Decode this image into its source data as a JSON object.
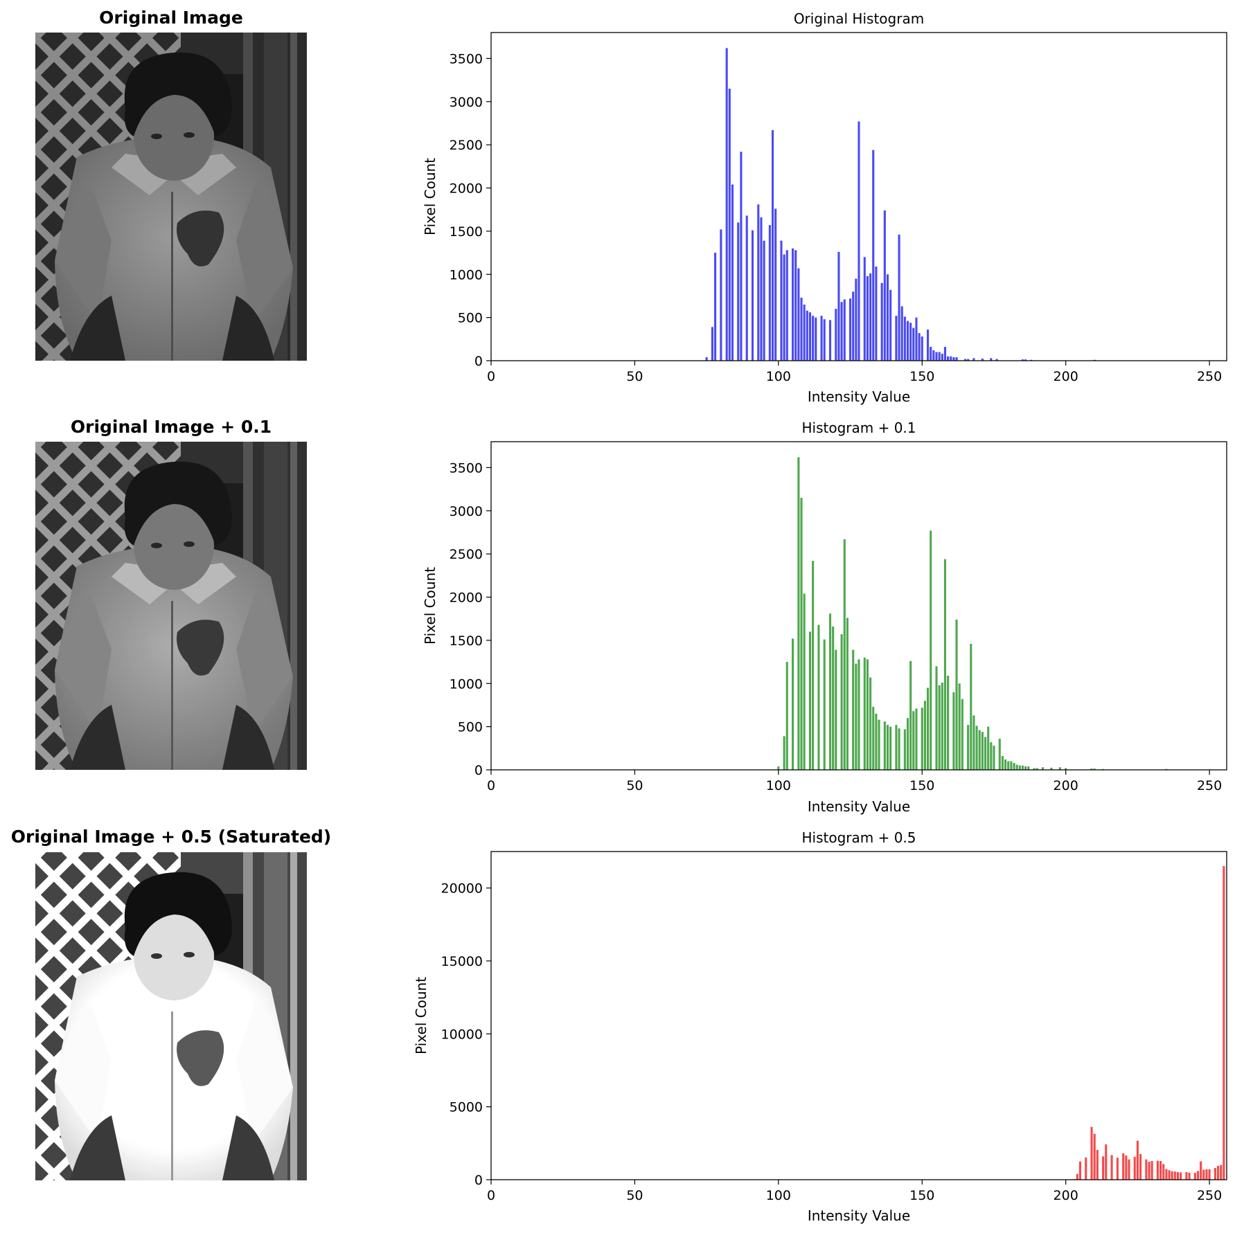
{
  "panels": [
    {
      "image_title": "Original Image",
      "photo": {
        "brightness": 0.0,
        "saturate": false
      }
    },
    {
      "image_title": "Original Image + 0.1",
      "photo": {
        "brightness": 0.1,
        "saturate": false
      }
    },
    {
      "image_title": "Original Image + 0.5 (Saturated)",
      "photo": {
        "brightness": 0.5,
        "saturate": true
      }
    }
  ],
  "colors": {
    "original": "#4a4af5",
    "plus_0_1": "#4ea84e",
    "plus_0_5": "#f54a4a",
    "axis": "#000000",
    "background": "#ffffff"
  },
  "chart_data": [
    {
      "type": "bar",
      "title": "Original Histogram",
      "xlabel": "Intensity Value",
      "ylabel": "Pixel Count",
      "xlim": [
        0,
        256
      ],
      "ylim": [
        0,
        3800
      ],
      "xticks": [
        0,
        50,
        100,
        150,
        200,
        250
      ],
      "yticks": [
        0,
        500,
        1000,
        1500,
        2000,
        2500,
        3000,
        3500
      ],
      "grid": false,
      "bars": [
        [
          75,
          40
        ],
        [
          77,
          390
        ],
        [
          78,
          1250
        ],
        [
          80,
          1520
        ],
        [
          82,
          3620
        ],
        [
          83,
          3150
        ],
        [
          84,
          2040
        ],
        [
          86,
          1600
        ],
        [
          87,
          2420
        ],
        [
          89,
          1680
        ],
        [
          91,
          1510
        ],
        [
          93,
          1810
        ],
        [
          94,
          1660
        ],
        [
          95,
          1390
        ],
        [
          97,
          1570
        ],
        [
          98,
          2670
        ],
        [
          99,
          1760
        ],
        [
          101,
          1390
        ],
        [
          102,
          1230
        ],
        [
          103,
          1280
        ],
        [
          105,
          1300
        ],
        [
          106,
          1280
        ],
        [
          107,
          1070
        ],
        [
          108,
          730
        ],
        [
          109,
          650
        ],
        [
          110,
          580
        ],
        [
          111,
          560
        ],
        [
          112,
          520
        ],
        [
          113,
          500
        ],
        [
          115,
          520
        ],
        [
          116,
          480
        ],
        [
          118,
          470
        ],
        [
          120,
          600
        ],
        [
          121,
          1260
        ],
        [
          122,
          680
        ],
        [
          123,
          710
        ],
        [
          125,
          720
        ],
        [
          126,
          800
        ],
        [
          127,
          950
        ],
        [
          128,
          2770
        ],
        [
          130,
          1200
        ],
        [
          131,
          980
        ],
        [
          132,
          1010
        ],
        [
          133,
          2440
        ],
        [
          134,
          1090
        ],
        [
          136,
          900
        ],
        [
          137,
          1740
        ],
        [
          138,
          1000
        ],
        [
          139,
          820
        ],
        [
          141,
          520
        ],
        [
          142,
          1460
        ],
        [
          143,
          630
        ],
        [
          144,
          510
        ],
        [
          145,
          460
        ],
        [
          146,
          440
        ],
        [
          147,
          380
        ],
        [
          148,
          500
        ],
        [
          149,
          320
        ],
        [
          150,
          280
        ],
        [
          152,
          360
        ],
        [
          153,
          160
        ],
        [
          154,
          120
        ],
        [
          155,
          100
        ],
        [
          156,
          100
        ],
        [
          157,
          80
        ],
        [
          158,
          160
        ],
        [
          159,
          50
        ],
        [
          160,
          50
        ],
        [
          161,
          40
        ],
        [
          162,
          40
        ],
        [
          165,
          20
        ],
        [
          166,
          20
        ],
        [
          168,
          30
        ],
        [
          171,
          25
        ],
        [
          174,
          30
        ],
        [
          176,
          20
        ],
        [
          185,
          15
        ],
        [
          186,
          15
        ],
        [
          188,
          10
        ],
        [
          210,
          10
        ]
      ]
    },
    {
      "type": "bar",
      "title": "Histogram + 0.1",
      "xlabel": "Intensity Value",
      "ylabel": "Pixel Count",
      "xlim": [
        0,
        256
      ],
      "ylim": [
        0,
        3800
      ],
      "xticks": [
        0,
        50,
        100,
        150,
        200,
        250
      ],
      "yticks": [
        0,
        500,
        1000,
        1500,
        2000,
        2500,
        3000,
        3500
      ],
      "grid": false,
      "bars": [
        [
          100,
          40
        ],
        [
          102,
          390
        ],
        [
          103,
          1250
        ],
        [
          105,
          1520
        ],
        [
          107,
          3620
        ],
        [
          108,
          3150
        ],
        [
          109,
          2040
        ],
        [
          111,
          1600
        ],
        [
          112,
          2420
        ],
        [
          114,
          1680
        ],
        [
          116,
          1510
        ],
        [
          118,
          1810
        ],
        [
          119,
          1660
        ],
        [
          120,
          1390
        ],
        [
          122,
          1570
        ],
        [
          123,
          2670
        ],
        [
          124,
          1760
        ],
        [
          126,
          1390
        ],
        [
          127,
          1230
        ],
        [
          128,
          1280
        ],
        [
          130,
          1300
        ],
        [
          131,
          1280
        ],
        [
          132,
          1070
        ],
        [
          133,
          730
        ],
        [
          134,
          650
        ],
        [
          135,
          580
        ],
        [
          137,
          560
        ],
        [
          138,
          520
        ],
        [
          139,
          500
        ],
        [
          141,
          520
        ],
        [
          142,
          480
        ],
        [
          144,
          470
        ],
        [
          145,
          600
        ],
        [
          146,
          1260
        ],
        [
          147,
          680
        ],
        [
          148,
          710
        ],
        [
          150,
          720
        ],
        [
          151,
          800
        ],
        [
          152,
          950
        ],
        [
          153,
          2770
        ],
        [
          155,
          1200
        ],
        [
          156,
          980
        ],
        [
          157,
          1010
        ],
        [
          158,
          2440
        ],
        [
          159,
          1090
        ],
        [
          161,
          900
        ],
        [
          162,
          1740
        ],
        [
          163,
          1000
        ],
        [
          164,
          820
        ],
        [
          166,
          520
        ],
        [
          167,
          1460
        ],
        [
          168,
          630
        ],
        [
          169,
          510
        ],
        [
          170,
          460
        ],
        [
          171,
          440
        ],
        [
          172,
          380
        ],
        [
          173,
          500
        ],
        [
          174,
          320
        ],
        [
          175,
          280
        ],
        [
          177,
          360
        ],
        [
          178,
          160
        ],
        [
          179,
          120
        ],
        [
          180,
          100
        ],
        [
          181,
          100
        ],
        [
          182,
          80
        ],
        [
          183,
          60
        ],
        [
          184,
          50
        ],
        [
          185,
          50
        ],
        [
          186,
          40
        ],
        [
          187,
          40
        ],
        [
          189,
          20
        ],
        [
          190,
          20
        ],
        [
          192,
          30
        ],
        [
          195,
          25
        ],
        [
          198,
          30
        ],
        [
          200,
          20
        ],
        [
          209,
          15
        ],
        [
          210,
          15
        ],
        [
          213,
          10
        ],
        [
          235,
          10
        ]
      ]
    },
    {
      "type": "bar",
      "title": "Histogram + 0.5",
      "xlabel": "Intensity Value",
      "ylabel": "Pixel Count",
      "xlim": [
        0,
        256
      ],
      "ylim": [
        0,
        22500
      ],
      "xticks": [
        0,
        50,
        100,
        150,
        200,
        250
      ],
      "yticks": [
        0,
        5000,
        10000,
        15000,
        20000
      ],
      "grid": false,
      "bars": [
        [
          203,
          40
        ],
        [
          204,
          390
        ],
        [
          205,
          1250
        ],
        [
          207,
          1520
        ],
        [
          209,
          3620
        ],
        [
          210,
          3150
        ],
        [
          211,
          2040
        ],
        [
          213,
          1600
        ],
        [
          214,
          2420
        ],
        [
          216,
          1680
        ],
        [
          218,
          1510
        ],
        [
          220,
          1810
        ],
        [
          221,
          1660
        ],
        [
          222,
          1390
        ],
        [
          224,
          1570
        ],
        [
          225,
          2670
        ],
        [
          226,
          1760
        ],
        [
          228,
          1390
        ],
        [
          229,
          1230
        ],
        [
          230,
          1280
        ],
        [
          232,
          1300
        ],
        [
          233,
          1280
        ],
        [
          234,
          1070
        ],
        [
          235,
          730
        ],
        [
          236,
          650
        ],
        [
          237,
          580
        ],
        [
          238,
          560
        ],
        [
          239,
          520
        ],
        [
          240,
          500
        ],
        [
          242,
          520
        ],
        [
          243,
          480
        ],
        [
          245,
          470
        ],
        [
          246,
          600
        ],
        [
          247,
          1260
        ],
        [
          248,
          680
        ],
        [
          249,
          710
        ],
        [
          250,
          720
        ],
        [
          252,
          800
        ],
        [
          253,
          950
        ],
        [
          254,
          1010
        ],
        [
          255,
          21500
        ]
      ]
    }
  ]
}
